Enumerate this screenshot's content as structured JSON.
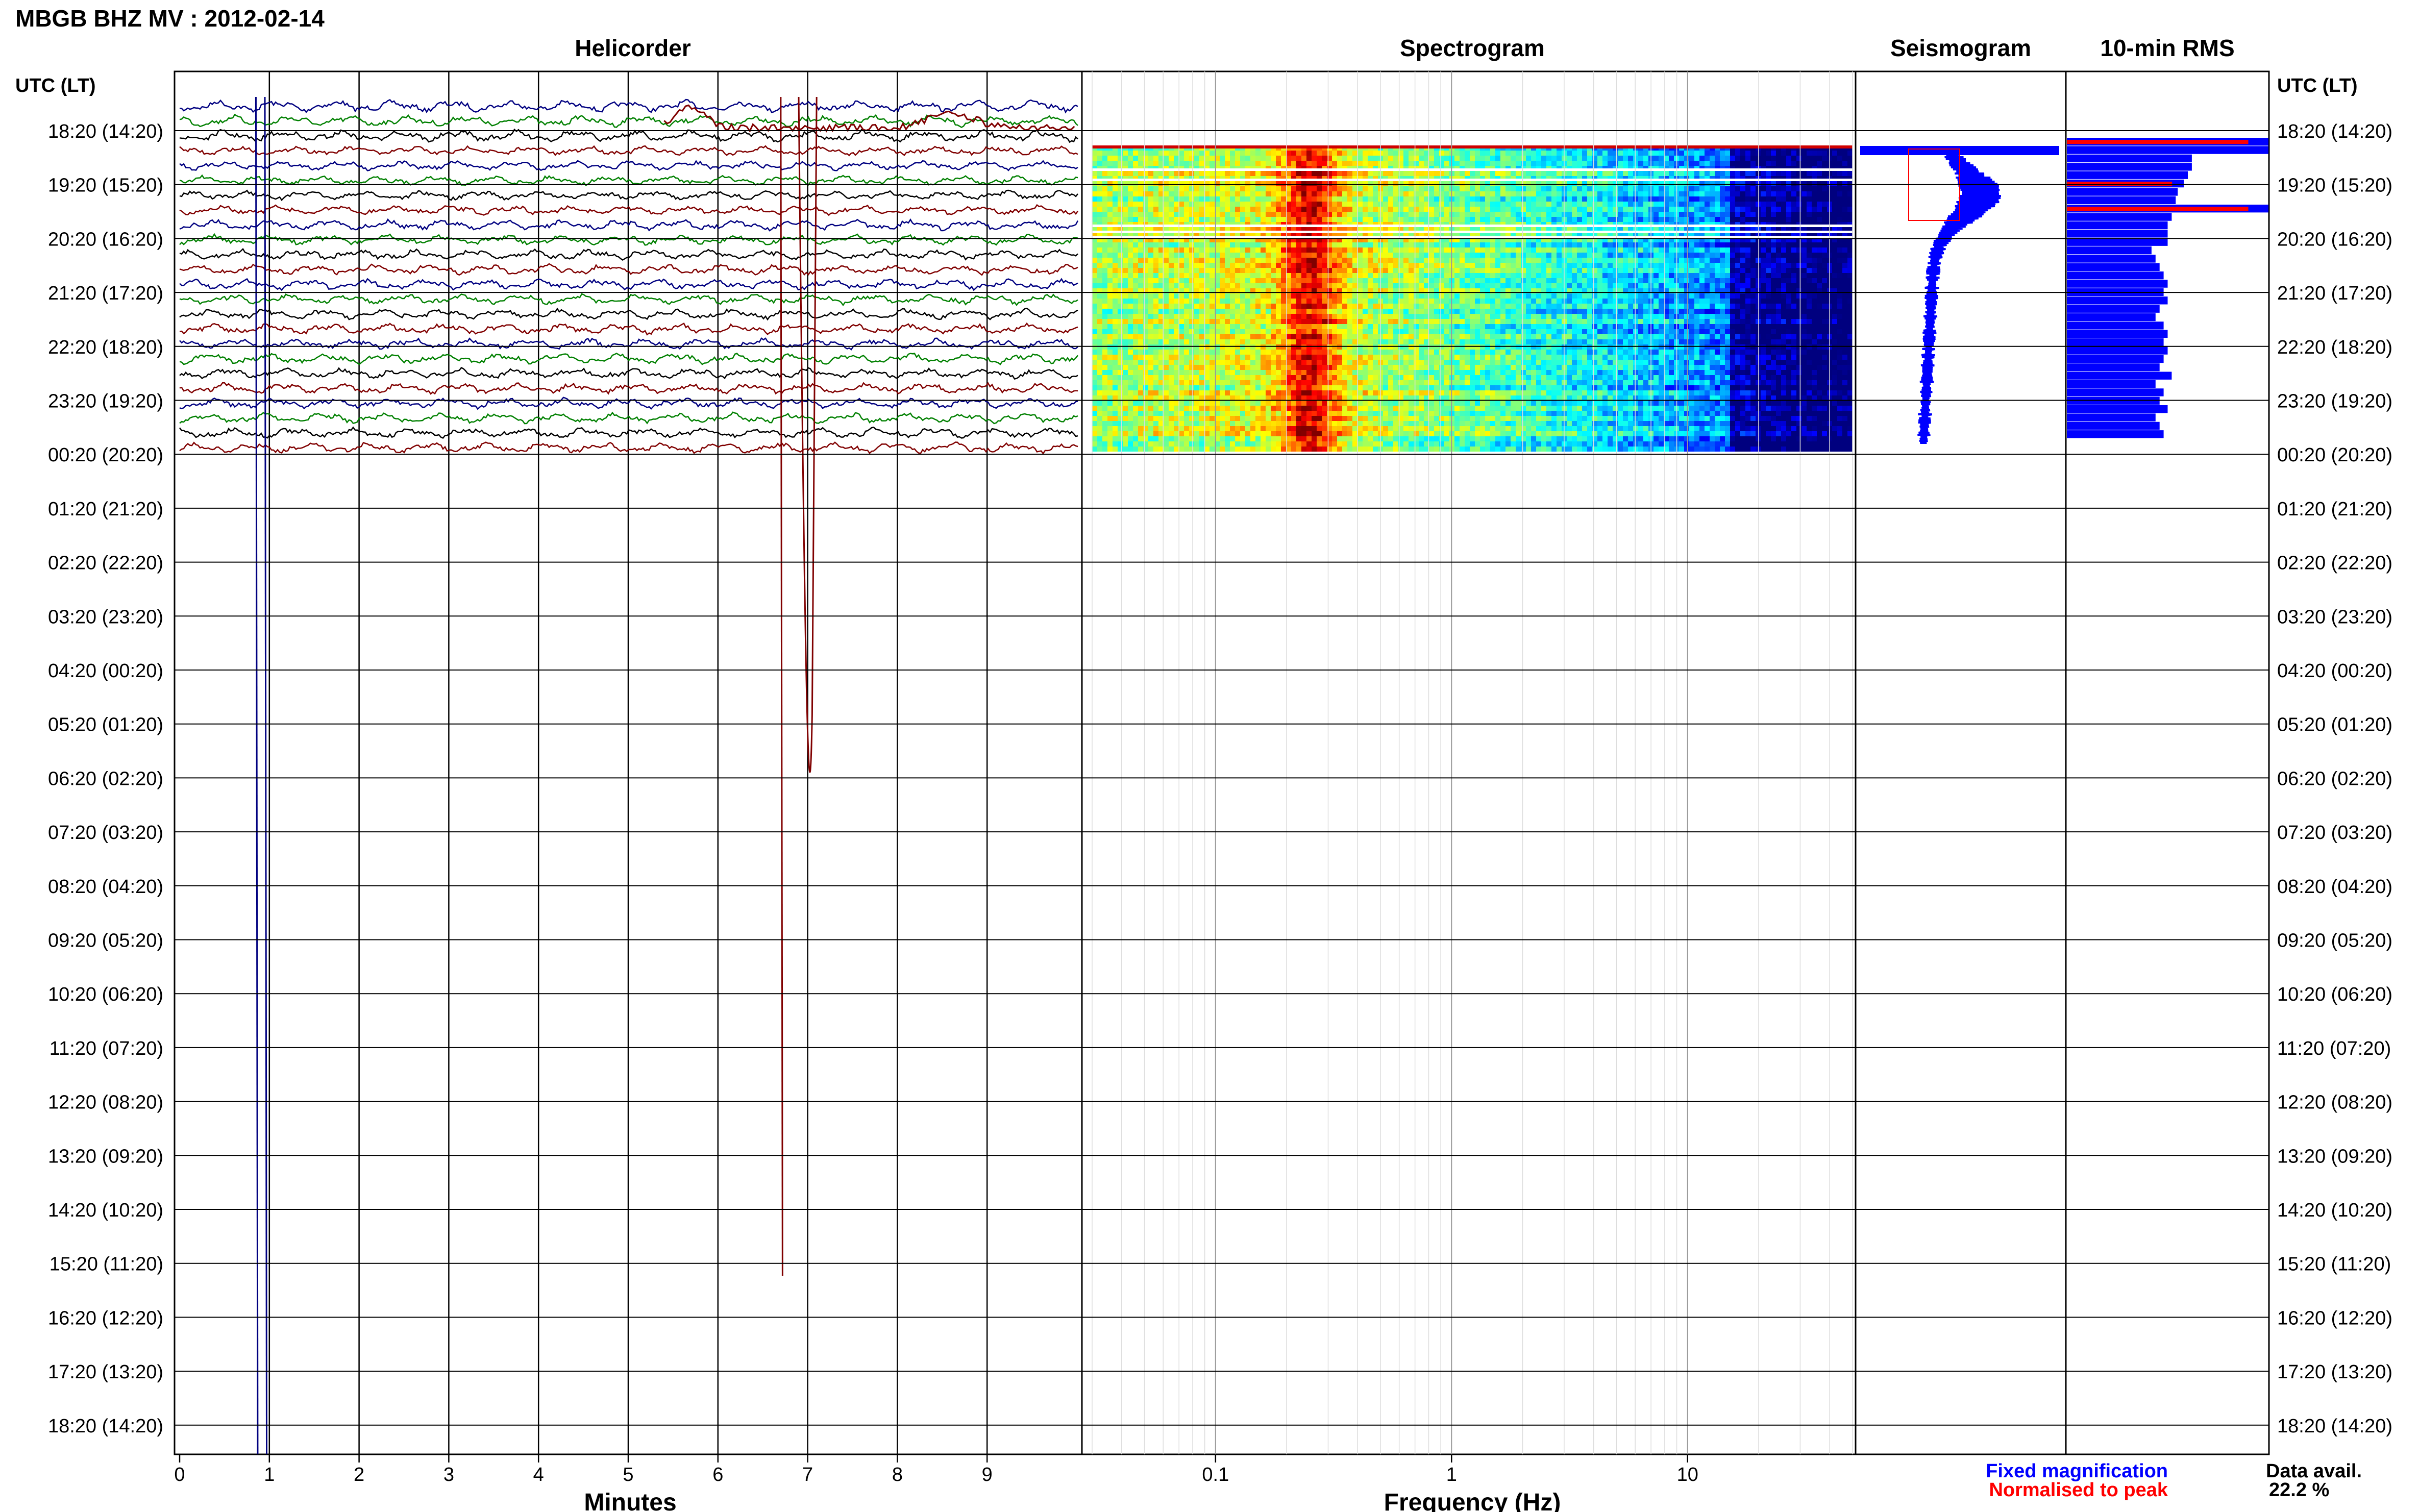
{
  "header": {
    "title": "MBGB BHZ MV : 2012-02-14"
  },
  "panels": {
    "helicorder": "Helicorder",
    "spectrogram": "Spectrogram",
    "seismogram": "Seismogram",
    "rms": "10-min RMS"
  },
  "time_axis_label": "UTC (LT)",
  "time_labels": [
    "18:20 (14:20)",
    "19:20 (15:20)",
    "20:20 (16:20)",
    "21:20 (17:20)",
    "22:20 (18:20)",
    "23:20 (19:20)",
    "00:20 (20:20)",
    "01:20 (21:20)",
    "02:20 (22:20)",
    "03:20 (23:20)",
    "04:20 (00:20)",
    "05:20 (01:20)",
    "06:20 (02:20)",
    "07:20 (03:20)",
    "08:20 (04:20)",
    "09:20 (05:20)",
    "10:20 (06:20)",
    "11:20 (07:20)",
    "12:20 (08:20)",
    "13:20 (09:20)",
    "14:20 (10:20)",
    "15:20 (11:20)",
    "16:20 (12:20)",
    "17:20 (13:20)",
    "18:20 (14:20)"
  ],
  "legend": {
    "fixed": "Fixed magnification",
    "normalised": "Normalised to peak",
    "fixed_color": "#0000ff",
    "normalised_color": "#ff0000"
  },
  "data_avail": {
    "label": "Data avail.",
    "value": "22.2 %"
  },
  "colors": {
    "trace": [
      "#000080",
      "#008000",
      "#000000",
      "#800000"
    ],
    "rms_bar": "#0000ff",
    "rms_peak": "#ff0000"
  },
  "chart_data": [
    {
      "type": "line",
      "panel": "helicorder",
      "xlabel": "Minutes",
      "x_ticks": [
        "0",
        "1",
        "2",
        "3",
        "4",
        "5",
        "6",
        "7",
        "8",
        "9"
      ],
      "xlim": [
        0,
        10
      ],
      "rows_with_data": 6,
      "grid": true
    },
    {
      "type": "heatmap",
      "panel": "spectrogram",
      "xlabel": "Frequency (Hz)",
      "x_ticks": [
        "0.1",
        "1",
        "10"
      ],
      "x_scale": "log",
      "xlim": [
        0.03,
        50
      ],
      "peak_band_hz": [
        0.2,
        0.3
      ],
      "rows_with_data": 6
    },
    {
      "type": "line",
      "panel": "seismogram",
      "series": [
        {
          "name": "Fixed magnification",
          "color": "#0000ff"
        },
        {
          "name": "Normalised to peak",
          "color": "#ff0000"
        }
      ]
    },
    {
      "type": "bar",
      "panel": "10-min RMS",
      "orientation": "horizontal",
      "values": [
        1.0,
        1.0,
        0.62,
        0.62,
        0.6,
        0.58,
        0.55,
        0.54,
        1.0,
        0.52,
        0.5,
        0.5,
        0.5,
        0.42,
        0.44,
        0.46,
        0.48,
        0.5,
        0.48,
        0.5,
        0.46,
        0.44,
        0.48,
        0.5,
        0.48,
        0.5,
        0.48,
        0.46,
        0.52,
        0.44,
        0.48,
        0.46,
        0.5,
        0.44,
        0.46,
        0.48
      ],
      "peak_rows": [
        0,
        5,
        8
      ]
    }
  ]
}
